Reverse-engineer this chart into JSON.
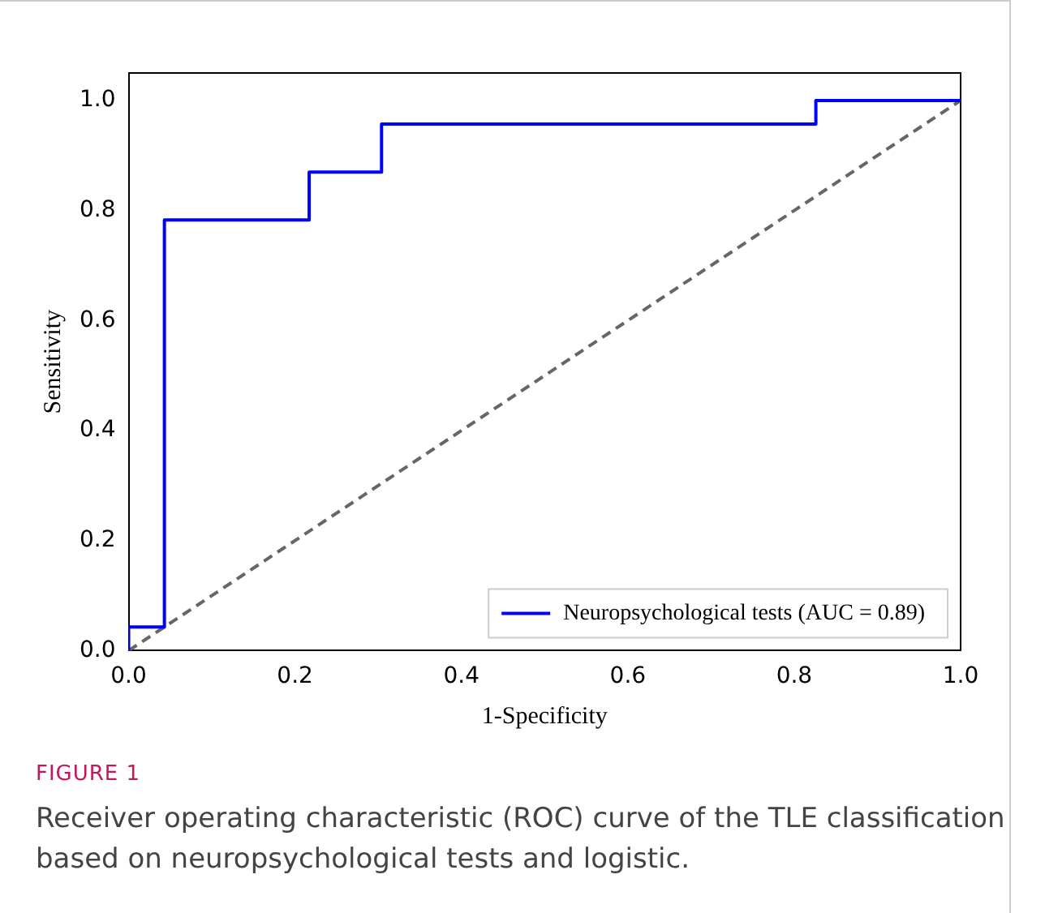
{
  "chart_data": {
    "type": "step",
    "xlabel": "1-Specificity",
    "ylabel": "Sensitivity",
    "xlim": [
      0,
      1
    ],
    "ylim": [
      0,
      1.05
    ],
    "xticks": [
      {
        "value": 0,
        "label": "0.0"
      },
      0.2,
      0.4,
      0.6,
      0.8,
      {
        "value": 1,
        "label": "1.0"
      }
    ],
    "yticks": [
      {
        "value": 0,
        "label": "0.0"
      },
      0.2,
      0.4,
      0.6,
      0.8,
      {
        "value": 1,
        "label": "1.0"
      }
    ],
    "grid": false,
    "legend": "bottom right",
    "series": [
      {
        "name": "Neuropsychological tests (AUC = 0.89)",
        "color": "#0000ff",
        "x": [
          0,
          0,
          0.043,
          0.217,
          0.304,
          0.826,
          1
        ],
        "values": [
          0,
          0.043,
          0.783,
          0.87,
          0.957,
          1,
          1
        ]
      },
      {
        "type": "line",
        "color": "#666666",
        "line_style": "dashed",
        "x": [
          0,
          1
        ],
        "values": [
          0,
          1
        ]
      }
    ],
    "annotations": [
      "FIGURE 1",
      "Receiver operating characteristic (ROC) curve of the TLE classification based on neuropsychological tests and logistic."
    ]
  }
}
